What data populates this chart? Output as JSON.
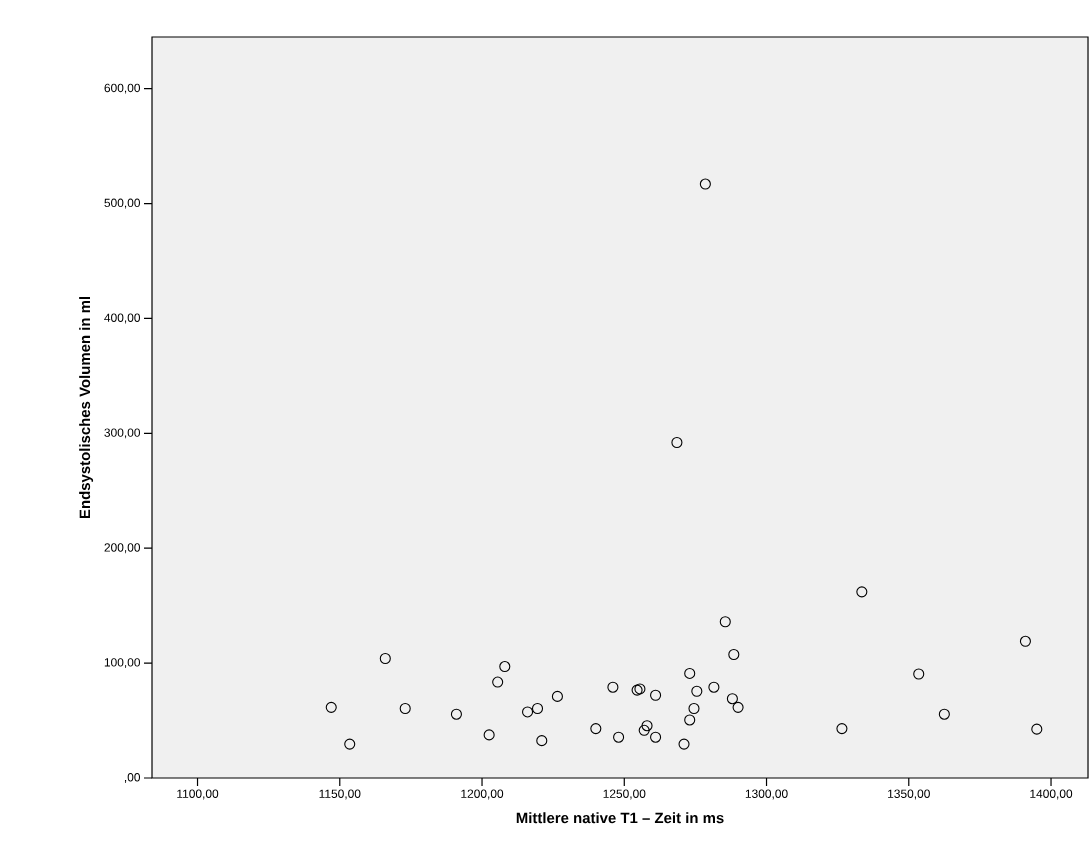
{
  "chart_data": {
    "type": "scatter",
    "xlabel": "Mittlere native T1 – Zeit in ms",
    "ylabel": "Endsystolisches Volumen in ml",
    "x": [
      1147,
      1153.5,
      1166,
      1173,
      1191,
      1202.5,
      1205.5,
      1208,
      1216,
      1219.5,
      1221,
      1226.5,
      1240,
      1246,
      1248,
      1254.5,
      1255.5,
      1261,
      1258,
      1257,
      1261,
      1271,
      1273,
      1273,
      1275.5,
      1274.5,
      1281.5,
      1285.5,
      1288.5,
      1288,
      1290,
      1326.5,
      1353.5,
      1362.5,
      1391,
      1395,
      1268.5,
      1278.5,
      1333.5
    ],
    "values": [
      61.5,
      29.5,
      104,
      60.5,
      55.5,
      37.5,
      83.5,
      97,
      57.5,
      60.5,
      32.5,
      71,
      43,
      79,
      35.5,
      76.5,
      77.5,
      72,
      45.5,
      41.5,
      35.5,
      29.5,
      91,
      50.5,
      75.5,
      60.5,
      79,
      136,
      107.5,
      69,
      61.5,
      43,
      90.5,
      55.5,
      119,
      42.5,
      292,
      517,
      162
    ],
    "color": "#000000",
    "marker": "circle",
    "xlim": [
      1084,
      1413
    ],
    "ylim": [
      0,
      645
    ],
    "xticks": [
      {
        "value": 1100,
        "label": "1100,00"
      },
      {
        "value": 1150,
        "label": "1150,00"
      },
      {
        "value": 1200,
        "label": "1200,00"
      },
      {
        "value": 1250,
        "label": "1250,00"
      },
      {
        "value": 1300,
        "label": "1300,00"
      },
      {
        "value": 1350,
        "label": "1350,00"
      },
      {
        "value": 1400,
        "label": "1400,00"
      }
    ],
    "yticks": [
      {
        "value": 0,
        "label": ",00"
      },
      {
        "value": 100,
        "label": "100,00"
      },
      {
        "value": 200,
        "label": "200,00"
      },
      {
        "value": 300,
        "label": "300,00"
      },
      {
        "value": 400,
        "label": "400,00"
      },
      {
        "value": 500,
        "label": "500,00"
      },
      {
        "value": 600,
        "label": "600,00"
      }
    ]
  }
}
